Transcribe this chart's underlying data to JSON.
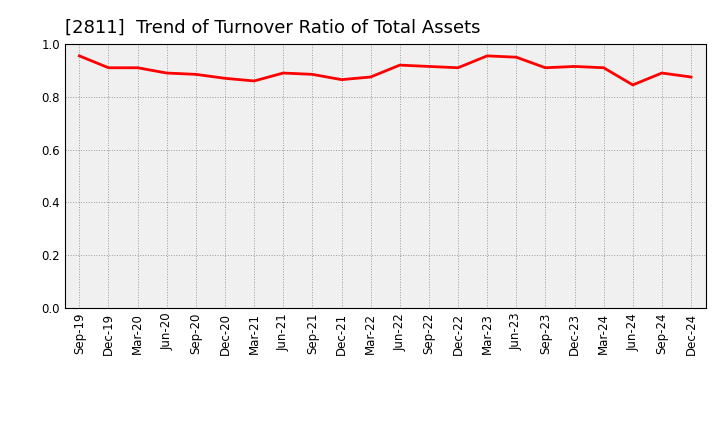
{
  "title": "[2811]  Trend of Turnover Ratio of Total Assets",
  "labels": [
    "Sep-19",
    "Dec-19",
    "Mar-20",
    "Jun-20",
    "Sep-20",
    "Dec-20",
    "Mar-21",
    "Jun-21",
    "Sep-21",
    "Dec-21",
    "Mar-22",
    "Jun-22",
    "Sep-22",
    "Dec-22",
    "Mar-23",
    "Jun-23",
    "Sep-23",
    "Dec-23",
    "Mar-24",
    "Jun-24",
    "Sep-24",
    "Dec-24"
  ],
  "values": [
    0.955,
    0.91,
    0.91,
    0.89,
    0.885,
    0.87,
    0.86,
    0.89,
    0.885,
    0.865,
    0.875,
    0.92,
    0.915,
    0.91,
    0.955,
    0.95,
    0.91,
    0.915,
    0.91,
    0.845,
    0.89,
    0.875
  ],
  "line_color": "#FF0000",
  "line_width": 2.0,
  "ylim": [
    0.0,
    1.0
  ],
  "yticks": [
    0.0,
    0.2,
    0.4,
    0.6,
    0.8,
    1.0
  ],
  "background_color": "#ffffff",
  "plot_bg_color": "#f0f0f0",
  "grid_color": "#999999",
  "title_fontsize": 13,
  "tick_fontsize": 8.5
}
